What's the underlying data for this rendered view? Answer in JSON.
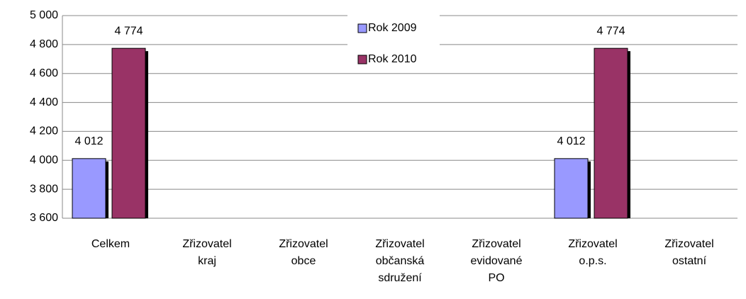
{
  "chart_data": {
    "type": "bar",
    "categories": [
      "Celkem",
      "Zřizovatel kraj",
      "Zřizovatel obce",
      "Zřizovatel občanská sdružení",
      "Zřizovatel evidované PO",
      "Zřizovatel o.p.s.",
      "Zřizovatel ostatní"
    ],
    "series": [
      {
        "name": "Rok 2009",
        "color": "#9999ff",
        "values": [
          4012,
          null,
          null,
          null,
          null,
          4012,
          null
        ],
        "value_labels": [
          "4 012",
          null,
          null,
          null,
          null,
          "4 012",
          null
        ]
      },
      {
        "name": "Rok 2010",
        "color": "#993366",
        "values": [
          4774,
          null,
          null,
          null,
          null,
          4774,
          null
        ],
        "value_labels": [
          "4 774",
          null,
          null,
          null,
          null,
          "4 774",
          null
        ]
      }
    ],
    "ylim": [
      3600,
      5000
    ],
    "yticks": [
      {
        "value": 3600,
        "label": "3 600"
      },
      {
        "value": 3800,
        "label": "3 800"
      },
      {
        "value": 4000,
        "label": "4 000"
      },
      {
        "value": 4200,
        "label": "4 200"
      },
      {
        "value": 4400,
        "label": "4 400"
      },
      {
        "value": 4600,
        "label": "4 600"
      },
      {
        "value": 4800,
        "label": "4 800"
      },
      {
        "value": 5000,
        "label": "5 000"
      }
    ],
    "grid": true,
    "legend": "top"
  }
}
